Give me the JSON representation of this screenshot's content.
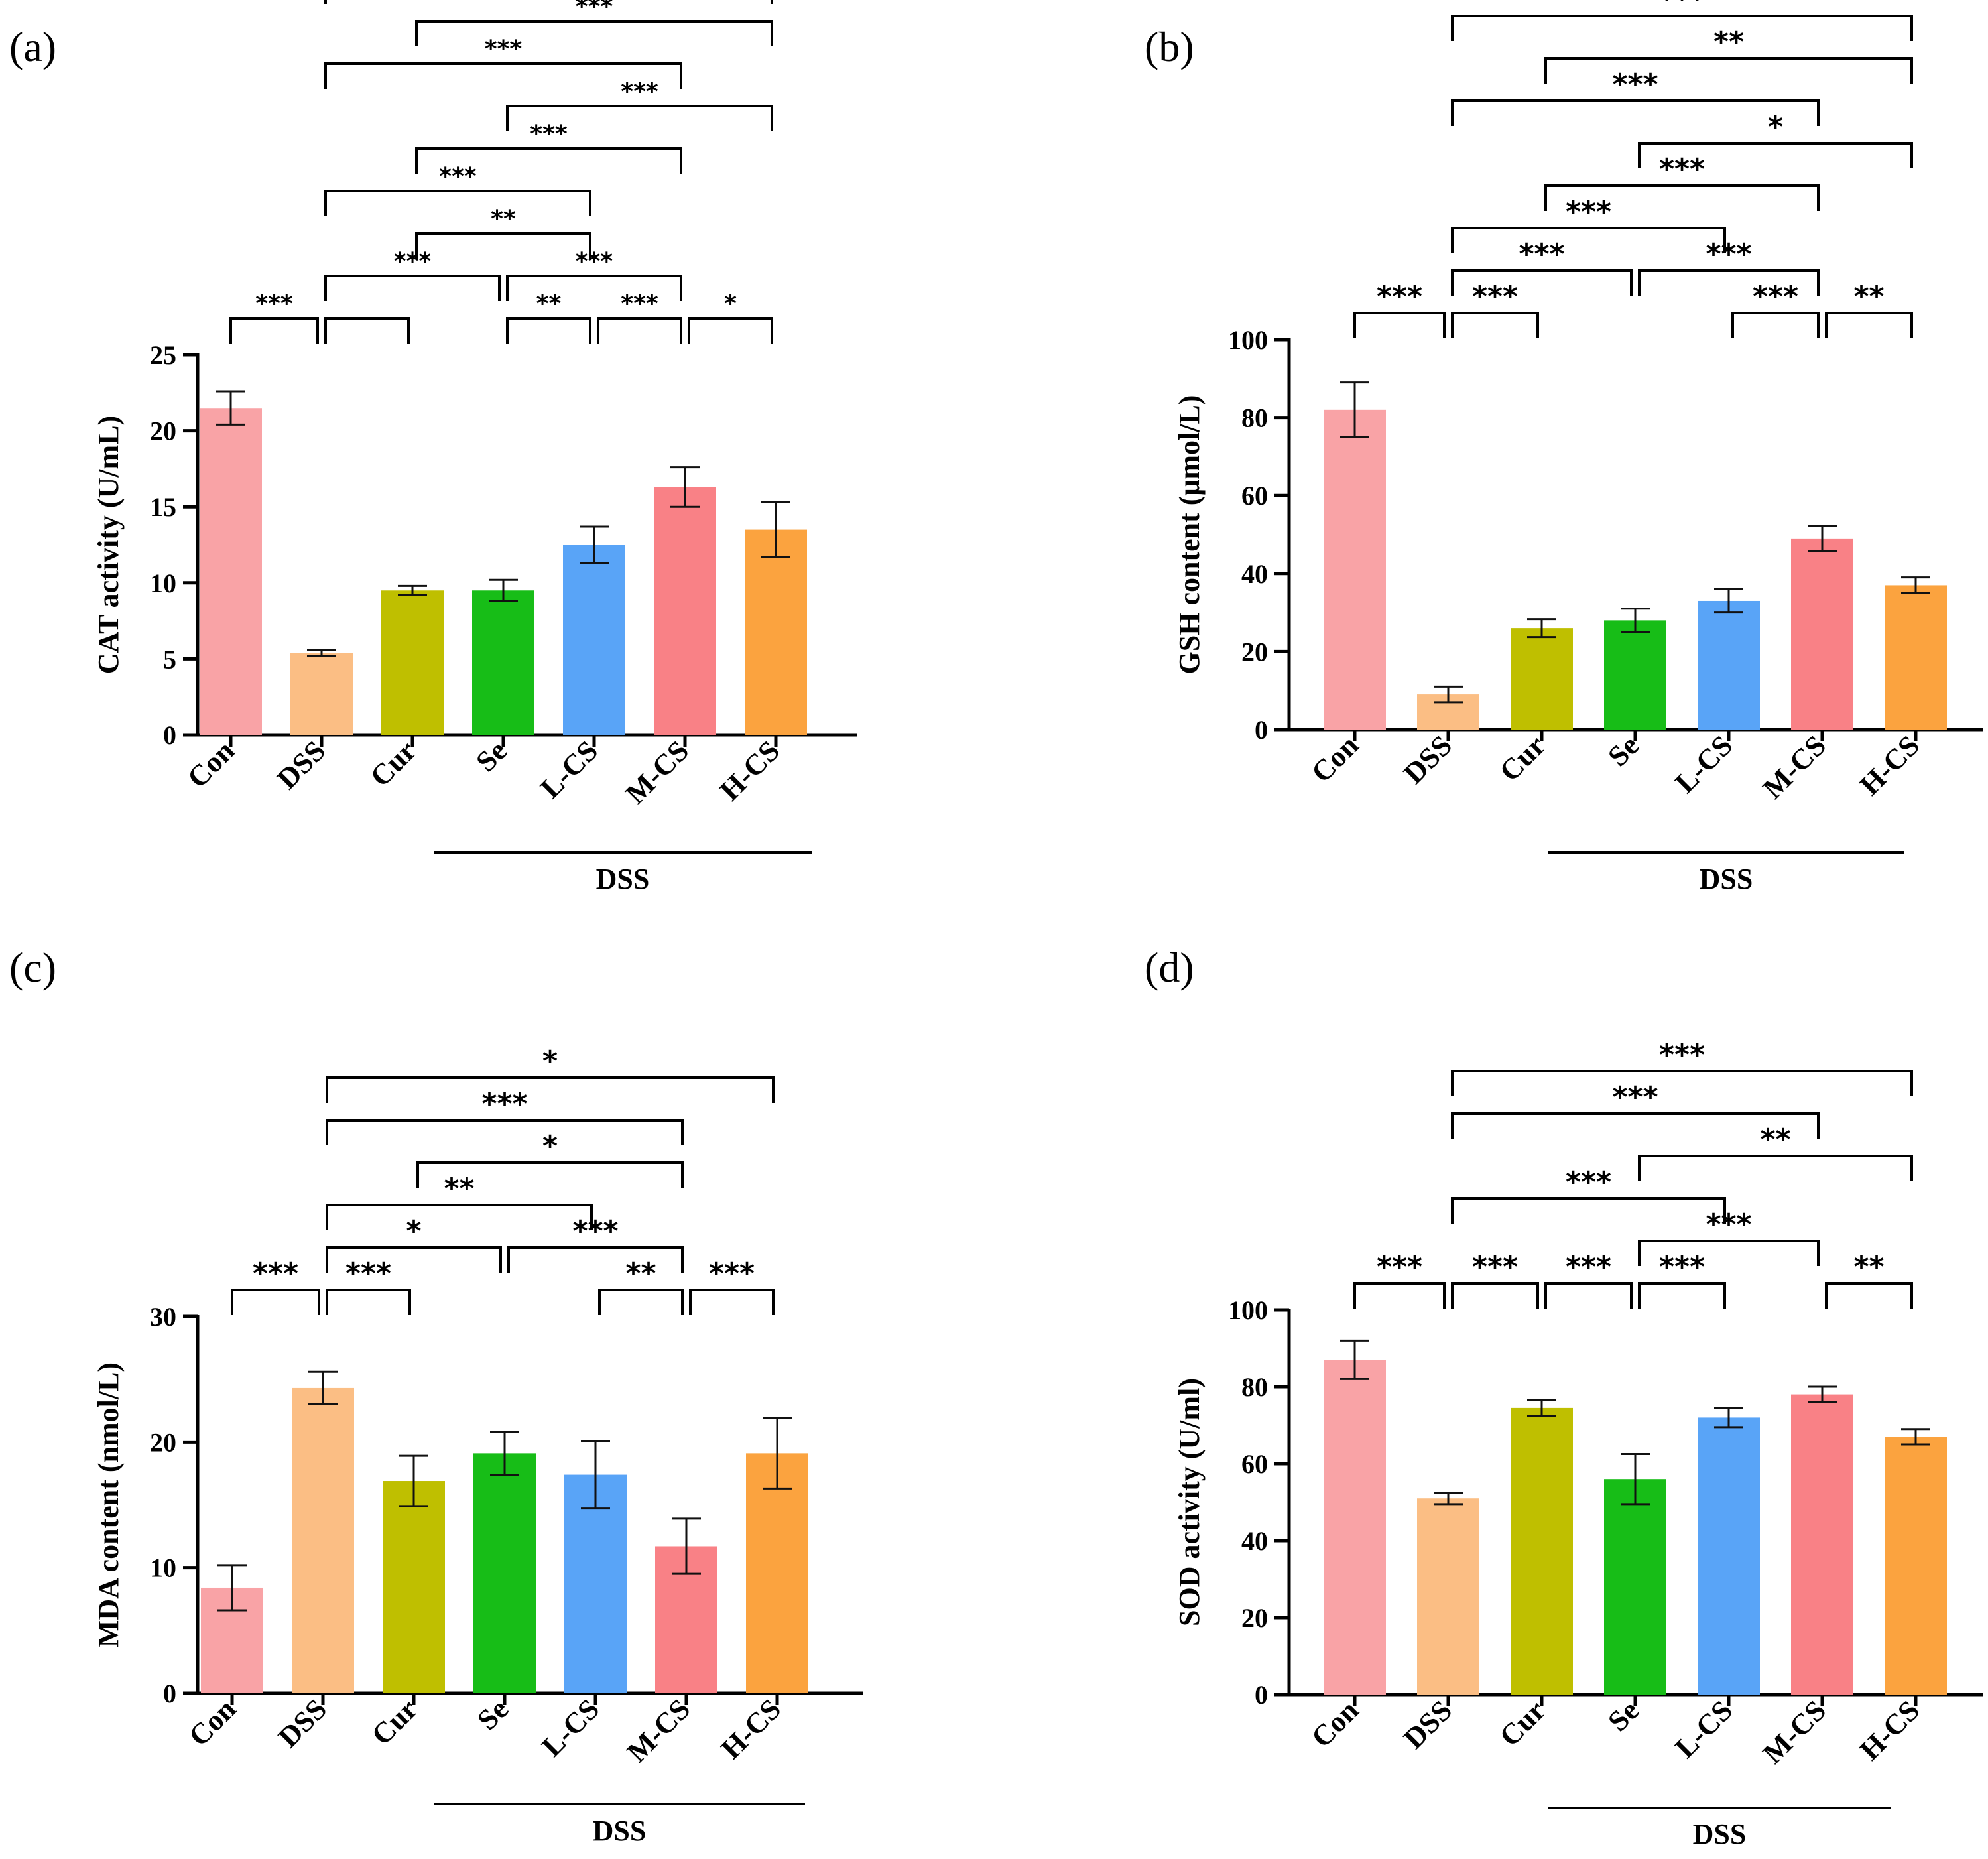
{
  "colors": [
    "#f9a3a6",
    "#fbbe84",
    "#bfbf00",
    "#17bd17",
    "#59a4f7",
    "#f98186",
    "#fba33f"
  ],
  "chart_data": [
    {
      "type": "bar",
      "panel": "(a)",
      "ylabel": "CAT activity (U/mL)",
      "group_label": "DSS",
      "categories": [
        "Con",
        "DSS",
        "Cur",
        "Se",
        "L-CS",
        "M-CS",
        "H-CS"
      ],
      "values": [
        21.5,
        5.4,
        9.5,
        9.5,
        12.5,
        16.3,
        13.5
      ],
      "errors": [
        1.1,
        0.2,
        0.3,
        0.7,
        1.2,
        1.3,
        1.8
      ],
      "ylim": [
        0,
        25
      ],
      "yticks": [
        0,
        5,
        10,
        15,
        20,
        25
      ],
      "star_size": 36,
      "sig": [
        {
          "a": 0,
          "b": 1,
          "label": "***"
        },
        {
          "a": 1,
          "b": 2,
          "label": ""
        },
        {
          "a": 1,
          "b": 3,
          "label": "***"
        },
        {
          "a": 1,
          "b": 4,
          "label": "***"
        },
        {
          "a": 1,
          "b": 5,
          "label": "***"
        },
        {
          "a": 1,
          "b": 6,
          "label": "***"
        },
        {
          "a": 2,
          "b": 4,
          "label": "**"
        },
        {
          "a": 2,
          "b": 5,
          "label": "***"
        },
        {
          "a": 2,
          "b": 6,
          "label": "***"
        },
        {
          "a": 3,
          "b": 4,
          "label": "**"
        },
        {
          "a": 3,
          "b": 5,
          "label": "***"
        },
        {
          "a": 3,
          "b": 6,
          "label": "***"
        },
        {
          "a": 4,
          "b": 5,
          "label": "***"
        },
        {
          "a": 5,
          "b": 6,
          "label": "*"
        }
      ]
    },
    {
      "type": "bar",
      "panel": "(b)",
      "ylabel": "GSH content (μmol/L)",
      "group_label": "DSS",
      "categories": [
        "Con",
        "DSS",
        "Cur",
        "Se",
        "L-CS",
        "M-CS",
        "H-CS"
      ],
      "values": [
        82,
        9,
        26,
        28,
        33,
        49,
        37
      ],
      "errors": [
        7,
        2,
        2.3,
        3,
        3,
        3.2,
        2
      ],
      "ylim": [
        0,
        100
      ],
      "yticks": [
        0,
        20,
        40,
        60,
        80,
        100
      ],
      "star_size": 44,
      "sig": [
        {
          "a": 0,
          "b": 1,
          "label": "***"
        },
        {
          "a": 1,
          "b": 2,
          "label": "***"
        },
        {
          "a": 1,
          "b": 3,
          "label": "***"
        },
        {
          "a": 1,
          "b": 4,
          "label": "***"
        },
        {
          "a": 1,
          "b": 5,
          "label": "***"
        },
        {
          "a": 1,
          "b": 6,
          "label": "***"
        },
        {
          "a": 2,
          "b": 5,
          "label": "***"
        },
        {
          "a": 2,
          "b": 6,
          "label": "**"
        },
        {
          "a": 3,
          "b": 5,
          "label": "***"
        },
        {
          "a": 3,
          "b": 6,
          "label": "*"
        },
        {
          "a": 4,
          "b": 5,
          "label": "***"
        },
        {
          "a": 5,
          "b": 6,
          "label": "**"
        }
      ]
    },
    {
      "type": "bar",
      "panel": "(c)",
      "ylabel": "MDA content (nmol/L)",
      "group_label": "DSS",
      "categories": [
        "Con",
        "DSS",
        "Cur",
        "Se",
        "L-CS",
        "M-CS",
        "H-CS"
      ],
      "values": [
        8.4,
        24.3,
        16.9,
        19.1,
        17.4,
        11.7,
        19.1
      ],
      "errors": [
        1.8,
        1.3,
        2,
        1.7,
        2.7,
        2.2,
        2.8
      ],
      "ylim": [
        0,
        30
      ],
      "yticks": [
        0,
        10,
        20,
        30
      ],
      "star_size": 44,
      "sig": [
        {
          "a": 0,
          "b": 1,
          "label": "***"
        },
        {
          "a": 1,
          "b": 2,
          "label": "***"
        },
        {
          "a": 1,
          "b": 3,
          "label": "*"
        },
        {
          "a": 1,
          "b": 4,
          "label": "**"
        },
        {
          "a": 1,
          "b": 5,
          "label": "***"
        },
        {
          "a": 1,
          "b": 6,
          "label": "*"
        },
        {
          "a": 2,
          "b": 5,
          "label": "*"
        },
        {
          "a": 3,
          "b": 5,
          "label": "***"
        },
        {
          "a": 4,
          "b": 5,
          "label": "**"
        },
        {
          "a": 5,
          "b": 6,
          "label": "***"
        }
      ]
    },
    {
      "type": "bar",
      "panel": "(d)",
      "ylabel": "SOD activity (U/ml)",
      "group_label": "DSS",
      "categories": [
        "Con",
        "DSS",
        "Cur",
        "Se",
        "L-CS",
        "M-CS",
        "H-CS"
      ],
      "values": [
        87,
        51,
        74.5,
        56,
        72,
        78,
        67
      ],
      "errors": [
        5,
        1.5,
        2,
        6.5,
        2.5,
        2,
        2
      ],
      "ylim": [
        0,
        100
      ],
      "yticks": [
        0,
        20,
        40,
        60,
        80,
        100
      ],
      "star_size": 44,
      "sig": [
        {
          "a": 0,
          "b": 1,
          "label": "***"
        },
        {
          "a": 1,
          "b": 2,
          "label": "***"
        },
        {
          "a": 1,
          "b": 4,
          "label": "***"
        },
        {
          "a": 1,
          "b": 5,
          "label": "***"
        },
        {
          "a": 1,
          "b": 6,
          "label": "***"
        },
        {
          "a": 2,
          "b": 3,
          "label": "***"
        },
        {
          "a": 3,
          "b": 4,
          "label": "***"
        },
        {
          "a": 3,
          "b": 5,
          "label": "***"
        },
        {
          "a": 3,
          "b": 6,
          "label": "**"
        },
        {
          "a": 5,
          "b": 6,
          "label": "**"
        }
      ]
    }
  ]
}
